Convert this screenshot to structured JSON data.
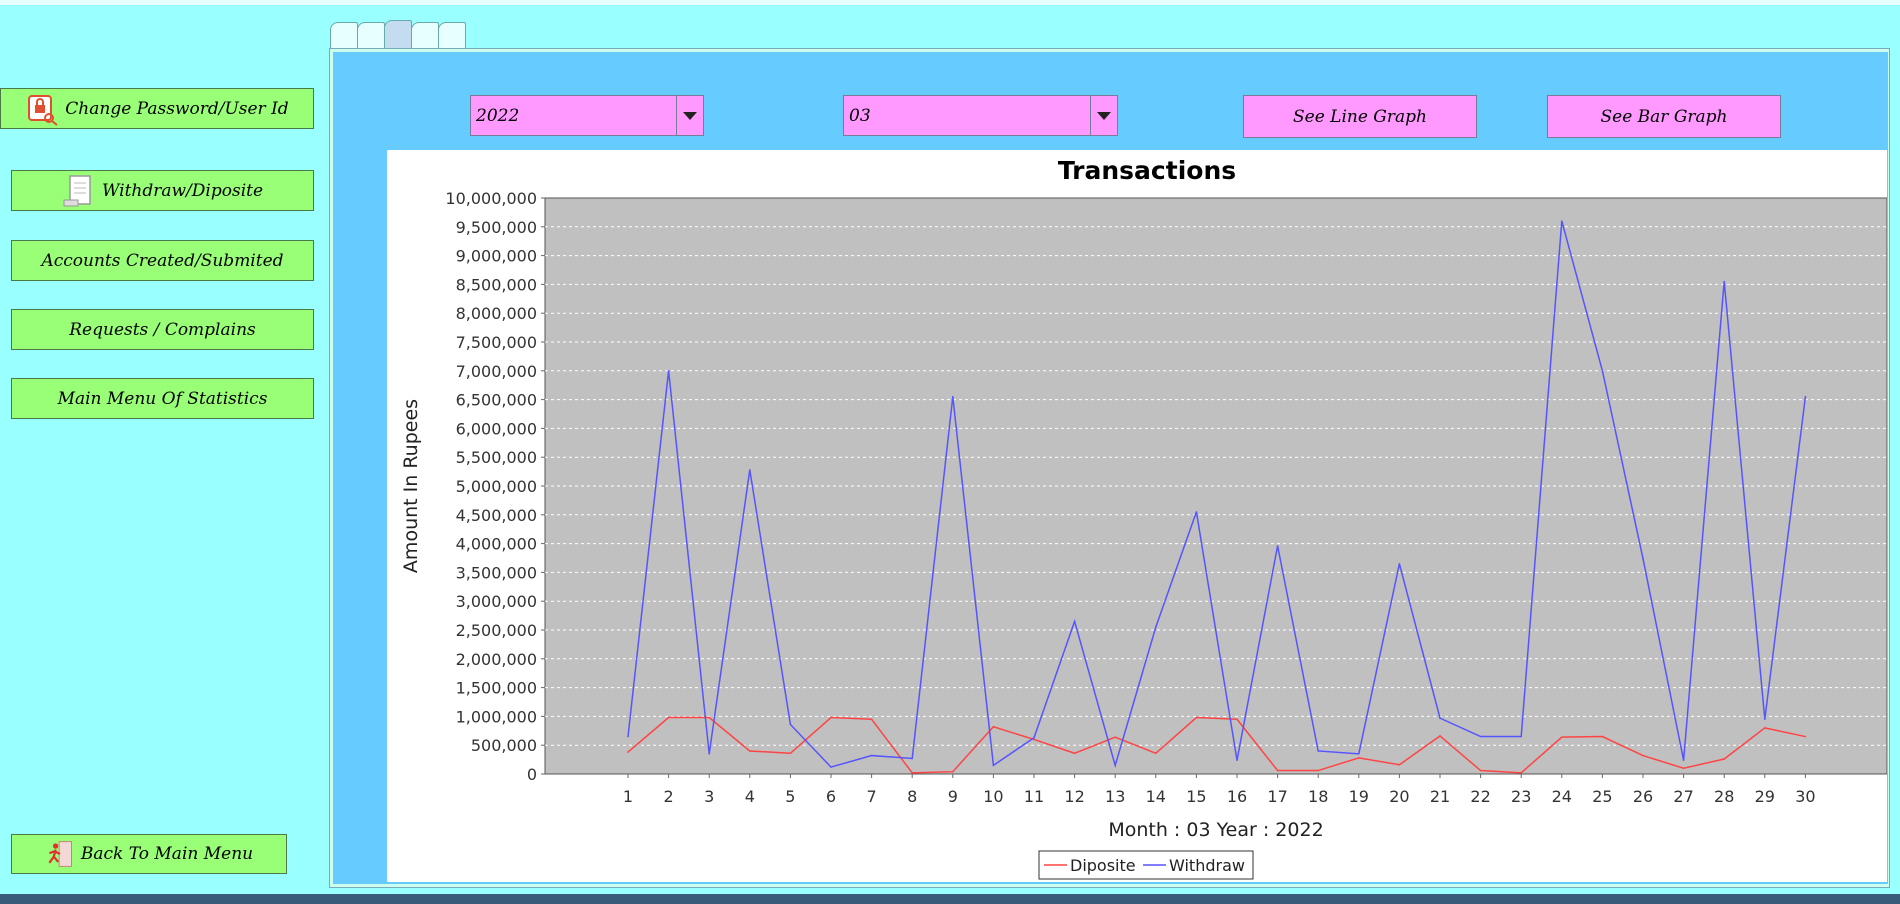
{
  "sidebar": {
    "change_password": "Change Password/User Id",
    "withdraw_deposite": "Withdraw/Diposite",
    "accounts_created": "Accounts Created/Submited",
    "requests": "Requests / Complains",
    "main_menu_stats": "Main Menu Of Statistics",
    "back_main": "Back To Main Menu",
    "icons": [
      "lock-key-icon",
      "document-icon",
      "exit-runner-icon"
    ]
  },
  "controls": {
    "year_value": "2022",
    "month_value": "03",
    "line_graph_label": "See Line Graph",
    "bar_graph_label": "See Bar Graph"
  },
  "colors": {
    "background": "#99ffff",
    "panel": "#66ccff",
    "side_button": "#99ff77",
    "pink_control": "#ff99ff",
    "plot_bg": "#c0c0c0",
    "diposite_line": "#ff4444",
    "withdraw_line": "#5555ff"
  },
  "chart_data": {
    "type": "line",
    "title": "Transactions",
    "xlabel": "Month : 03  Year : 2022",
    "ylabel": "Amount In Rupees",
    "categories": [
      "1",
      "2",
      "3",
      "4",
      "5",
      "6",
      "7",
      "8",
      "9",
      "10",
      "11",
      "12",
      "13",
      "14",
      "15",
      "16",
      "17",
      "18",
      "19",
      "20",
      "21",
      "22",
      "23",
      "24",
      "25",
      "26",
      "27",
      "28",
      "29",
      "30"
    ],
    "ylim": [
      0,
      10000000
    ],
    "yticks": [
      0,
      500000,
      1000000,
      1500000,
      2000000,
      2500000,
      3000000,
      3500000,
      4000000,
      4500000,
      5000000,
      5500000,
      6000000,
      6500000,
      7000000,
      7500000,
      8000000,
      8500000,
      9000000,
      9500000,
      10000000
    ],
    "ytick_labels": [
      "0",
      "500,000",
      "1,000,000",
      "1,500,000",
      "2,000,000",
      "2,500,000",
      "3,000,000",
      "3,500,000",
      "4,000,000",
      "4,500,000",
      "5,000,000",
      "5,500,000",
      "6,000,000",
      "6,500,000",
      "7,000,000",
      "7,500,000",
      "8,000,000",
      "8,500,000",
      "9,000,000",
      "9,500,000",
      "10,000,000"
    ],
    "grid": true,
    "legend_position": "bottom-center",
    "series": [
      {
        "name": "Diposite",
        "color": "#ff4444",
        "values": [
          380000,
          980000,
          980000,
          400000,
          360000,
          980000,
          950000,
          20000,
          40000,
          820000,
          600000,
          360000,
          640000,
          360000,
          980000,
          950000,
          60000,
          60000,
          280000,
          160000,
          660000,
          60000,
          20000,
          640000,
          650000,
          320000,
          100000,
          260000,
          800000,
          650000
        ]
      },
      {
        "name": "Withdraw",
        "color": "#5555ff",
        "values": [
          650000,
          7000000,
          350000,
          5280000,
          860000,
          120000,
          320000,
          270000,
          6550000,
          150000,
          630000,
          2650000,
          150000,
          2550000,
          4550000,
          240000,
          3960000,
          400000,
          350000,
          3650000,
          970000,
          650000,
          650000,
          9600000,
          7000000,
          3740000,
          240000,
          8550000,
          950000,
          6550000
        ]
      }
    ]
  }
}
